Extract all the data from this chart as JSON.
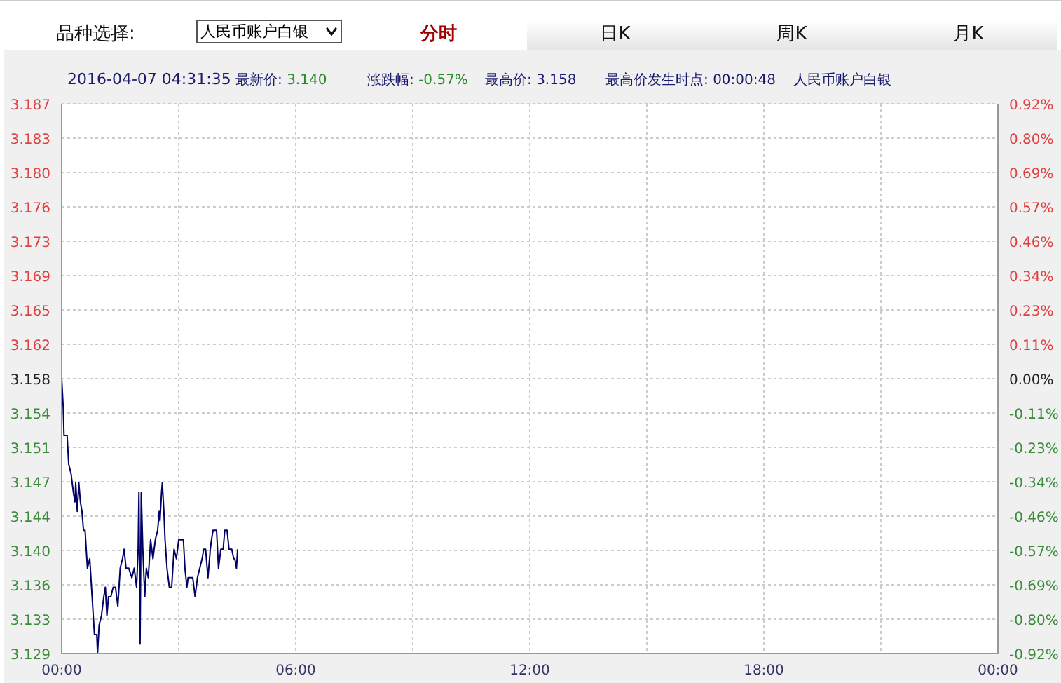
{
  "chart_data": {
    "type": "line",
    "annotations": [
      "品种选择:",
      "人民币账户白银",
      "分时",
      "日K",
      "周K",
      "月K",
      "2016-04-07 04:31:35",
      "最新价: 3.140",
      "涨跌幅: -0.57%",
      "最高价: 3.158",
      "最高价发生时点: 00:00:48",
      "人民币账户白银"
    ],
    "series": [
      {
        "color": "#000066",
        "x": [
          0,
          0.04,
          0.06,
          0.14,
          0.18,
          0.24,
          0.3,
          0.34,
          0.36,
          0.4,
          0.44,
          0.48,
          0.52,
          0.56,
          0.6,
          0.66,
          0.72,
          0.78,
          0.84,
          0.9,
          0.92,
          0.96,
          1.02,
          1.08,
          1.12,
          1.16,
          1.2,
          1.26,
          1.32,
          1.38,
          1.44,
          1.5,
          1.56,
          1.6,
          1.65,
          1.72,
          1.8,
          1.86,
          1.92,
          1.96,
          1.98,
          2.01,
          2.04,
          2.08,
          2.13,
          2.17,
          2.22,
          2.28,
          2.34,
          2.4,
          2.46,
          2.5,
          2.52,
          2.56,
          2.58,
          2.62,
          2.65,
          2.7,
          2.76,
          2.82,
          2.88,
          2.94,
          3.0,
          3.06,
          3.12,
          3.16,
          3.21,
          3.24,
          3.3,
          3.36,
          3.42,
          3.48,
          3.54,
          3.6,
          3.64,
          3.69,
          3.75,
          3.81,
          3.84,
          3.88,
          3.93,
          3.97,
          4.02,
          4.08,
          4.14,
          4.18,
          4.24,
          4.29,
          4.36,
          4.41,
          4.44,
          4.48,
          4.51
        ],
        "values": [
          3.158,
          3.155,
          3.152,
          3.152,
          3.149,
          3.148,
          3.146,
          3.145,
          3.147,
          3.144,
          3.147,
          3.145,
          3.144,
          3.142,
          3.142,
          3.138,
          3.139,
          3.135,
          3.131,
          3.131,
          3.129,
          3.132,
          3.133,
          3.135,
          3.136,
          3.133,
          3.135,
          3.135,
          3.136,
          3.136,
          3.134,
          3.138,
          3.139,
          3.14,
          3.138,
          3.138,
          3.137,
          3.138,
          3.136,
          3.14,
          3.146,
          3.13,
          3.146,
          3.14,
          3.135,
          3.138,
          3.137,
          3.141,
          3.139,
          3.141,
          3.142,
          3.144,
          3.143,
          3.146,
          3.147,
          3.144,
          3.141,
          3.138,
          3.136,
          3.136,
          3.14,
          3.139,
          3.141,
          3.141,
          3.141,
          3.138,
          3.136,
          3.137,
          3.137,
          3.137,
          3.135,
          3.137,
          3.138,
          3.139,
          3.14,
          3.14,
          3.137,
          3.14,
          3.141,
          3.142,
          3.142,
          3.142,
          3.138,
          3.14,
          3.14,
          3.142,
          3.142,
          3.14,
          3.14,
          3.139,
          3.139,
          3.138,
          3.14
        ]
      }
    ],
    "xlim": [
      0,
      24
    ],
    "xticks": [
      {
        "value": 0,
        "label": "00:00"
      },
      {
        "value": 3,
        "label": null
      },
      {
        "value": 6,
        "label": "06:00"
      },
      {
        "value": 9,
        "label": null
      },
      {
        "value": 12,
        "label": "12:00"
      },
      {
        "value": 15,
        "label": null
      },
      {
        "value": 18,
        "label": "18:00"
      },
      {
        "value": 21,
        "label": null
      },
      {
        "value": 24,
        "label": "00:00"
      }
    ],
    "ylim": [
      3.129,
      3.187
    ],
    "yticks": [
      {
        "value": 3.129,
        "label": "3.129"
      },
      {
        "value": 3.132625,
        "label": "3.133"
      },
      {
        "value": 3.13625,
        "label": "3.136"
      },
      {
        "value": 3.139875,
        "label": "3.140"
      },
      {
        "value": 3.1435,
        "label": "3.144"
      },
      {
        "value": 3.147125,
        "label": "3.147"
      },
      {
        "value": 3.15075,
        "label": "3.151"
      },
      {
        "value": 3.154375,
        "label": "3.154"
      },
      {
        "value": 3.158,
        "label": "3.158"
      },
      {
        "value": 3.161625,
        "label": "3.162"
      },
      {
        "value": 3.16525,
        "label": "3.165"
      },
      {
        "value": 3.168875,
        "label": "3.169"
      },
      {
        "value": 3.1725,
        "label": "3.173"
      },
      {
        "value": 3.176125,
        "label": "3.176"
      },
      {
        "value": 3.17975,
        "label": "3.180"
      },
      {
        "value": 3.183375,
        "label": "3.183"
      },
      {
        "value": 3.187,
        "label": "3.187"
      }
    ],
    "y2lim": [
      -0.92,
      0.92
    ],
    "y2ticks": [
      {
        "value": -0.92,
        "label": "-0.92%"
      },
      {
        "value": -0.805,
        "label": "-0.80%"
      },
      {
        "value": -0.69,
        "label": "-0.69%"
      },
      {
        "value": -0.575,
        "label": "-0.57%"
      },
      {
        "value": -0.46,
        "label": "-0.46%"
      },
      {
        "value": -0.345,
        "label": "-0.34%"
      },
      {
        "value": -0.23,
        "label": "-0.23%"
      },
      {
        "value": -0.115,
        "label": "-0.11%"
      },
      {
        "value": 0,
        "label": "0.00%"
      },
      {
        "value": 0.115,
        "label": "0.11%"
      },
      {
        "value": 0.23,
        "label": "0.23%"
      },
      {
        "value": 0.345,
        "label": "0.34%"
      },
      {
        "value": 0.46,
        "label": "0.46%"
      },
      {
        "value": 0.575,
        "label": "0.57%"
      },
      {
        "value": 0.69,
        "label": "0.69%"
      },
      {
        "value": 0.805,
        "label": "0.80%"
      },
      {
        "value": 0.92,
        "label": "0.92%"
      }
    ],
    "grid": true,
    "marker": "none",
    "line_style": "solid"
  }
}
